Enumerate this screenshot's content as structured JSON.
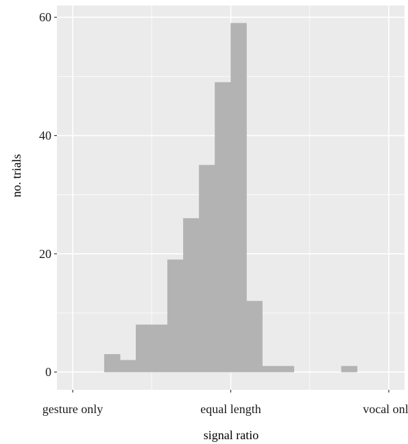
{
  "chart_data": {
    "type": "bar",
    "subtype": "histogram",
    "xlabel": "signal ratio",
    "ylabel": "no. trials",
    "x_ticks": [
      {
        "label": "gesture only",
        "value": -1
      },
      {
        "label": "equal length",
        "value": 0
      },
      {
        "label": "vocal only",
        "value": 1
      }
    ],
    "y_ticks": [
      0,
      20,
      40,
      60
    ],
    "xlim": [
      -1.1,
      1.1
    ],
    "ylim": [
      -3,
      62
    ],
    "bin_width": 0.1,
    "bins": [
      {
        "x0": -0.8,
        "x1": -0.7,
        "count": 3
      },
      {
        "x0": -0.7,
        "x1": -0.6,
        "count": 2
      },
      {
        "x0": -0.6,
        "x1": -0.5,
        "count": 8
      },
      {
        "x0": -0.5,
        "x1": -0.4,
        "count": 8
      },
      {
        "x0": -0.4,
        "x1": -0.3,
        "count": 19
      },
      {
        "x0": -0.3,
        "x1": -0.2,
        "count": 26
      },
      {
        "x0": -0.2,
        "x1": -0.1,
        "count": 35
      },
      {
        "x0": -0.1,
        "x1": 0.0,
        "count": 49
      },
      {
        "x0": 0.0,
        "x1": 0.1,
        "count": 59
      },
      {
        "x0": 0.1,
        "x1": 0.2,
        "count": 12
      },
      {
        "x0": 0.2,
        "x1": 0.3,
        "count": 1
      },
      {
        "x0": 0.3,
        "x1": 0.4,
        "count": 1
      },
      {
        "x0": 0.7,
        "x1": 0.8,
        "count": 1
      }
    ],
    "grid": true,
    "legend": "none",
    "colors": {
      "panel": "#ebebeb",
      "grid": "#ffffff",
      "bar": "#b3b3b3"
    }
  }
}
